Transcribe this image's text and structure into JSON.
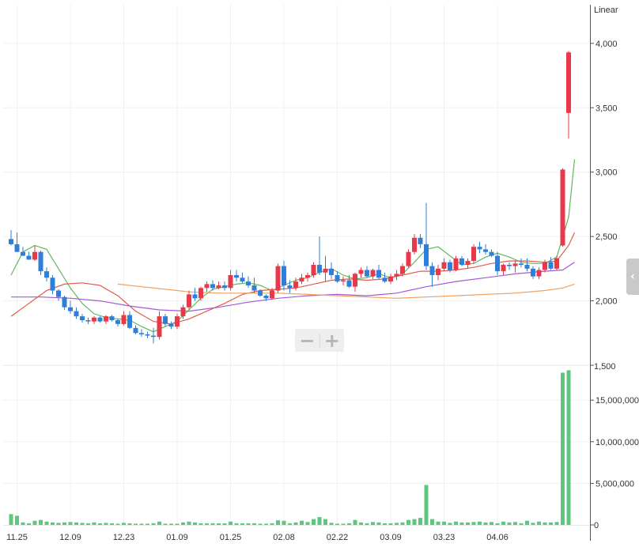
{
  "chart_data": {
    "type": "candlestick",
    "scale_label": "Linear",
    "x_tick_labels": [
      "11.25",
      "12.09",
      "12.23",
      "01.09",
      "01.25",
      "02.08",
      "02.22",
      "03.09",
      "03.23",
      "04.06"
    ],
    "x_tick_indices": [
      1,
      10,
      19,
      28,
      37,
      46,
      55,
      64,
      73,
      82
    ],
    "price_axis": {
      "ylim": [
        1500,
        4300
      ],
      "ticks": [
        2000,
        2500,
        3000,
        3500,
        4000
      ]
    },
    "price_axis_bottom_label": "1,500",
    "volume_axis": {
      "ylim": [
        0,
        19200000
      ],
      "ticks": [
        5000000,
        10000000,
        15000000
      ]
    },
    "volume_axis_bottom_label": "0",
    "candles_ohlc": [
      [
        2480,
        2550,
        2430,
        2440
      ],
      [
        2440,
        2530,
        2380,
        2380
      ],
      [
        2380,
        2420,
        2350,
        2350
      ],
      [
        2350,
        2380,
        2320,
        2320
      ],
      [
        2320,
        2430,
        2310,
        2380
      ],
      [
        2380,
        2390,
        2200,
        2230
      ],
      [
        2230,
        2260,
        2150,
        2180
      ],
      [
        2180,
        2200,
        2050,
        2080
      ],
      [
        2080,
        2090,
        2000,
        2030
      ],
      [
        2030,
        2040,
        1930,
        1950
      ],
      [
        1950,
        2000,
        1900,
        1920
      ],
      [
        1920,
        1950,
        1860,
        1880
      ],
      [
        1880,
        1900,
        1830,
        1850
      ],
      [
        1850,
        1870,
        1820,
        1840
      ],
      [
        1840,
        1880,
        1820,
        1870
      ],
      [
        1870,
        1880,
        1830,
        1840
      ],
      [
        1840,
        1890,
        1820,
        1880
      ],
      [
        1880,
        1890,
        1840,
        1850
      ],
      [
        1850,
        1860,
        1800,
        1820
      ],
      [
        1820,
        1920,
        1810,
        1890
      ],
      [
        1890,
        1920,
        1780,
        1790
      ],
      [
        1790,
        1810,
        1740,
        1750
      ],
      [
        1750,
        1780,
        1720,
        1740
      ],
      [
        1740,
        1760,
        1710,
        1730
      ],
      [
        1730,
        1790,
        1670,
        1720
      ],
      [
        1720,
        1920,
        1700,
        1880
      ],
      [
        1880,
        1900,
        1800,
        1820
      ],
      [
        1820,
        1840,
        1780,
        1800
      ],
      [
        1800,
        1900,
        1780,
        1880
      ],
      [
        1880,
        1970,
        1860,
        1950
      ],
      [
        1950,
        2080,
        1930,
        2050
      ],
      [
        2050,
        2100,
        2000,
        2020
      ],
      [
        2020,
        2110,
        2000,
        2100
      ],
      [
        2100,
        2150,
        2070,
        2130
      ],
      [
        2130,
        2160,
        2080,
        2100
      ],
      [
        2100,
        2150,
        2090,
        2120
      ],
      [
        2120,
        2150,
        2080,
        2100
      ],
      [
        2100,
        2240,
        2080,
        2200
      ],
      [
        2200,
        2240,
        2150,
        2180
      ],
      [
        2180,
        2220,
        2140,
        2150
      ],
      [
        2150,
        2190,
        2100,
        2120
      ],
      [
        2120,
        2180,
        2060,
        2080
      ],
      [
        2080,
        2090,
        2030,
        2040
      ],
      [
        2040,
        2050,
        2000,
        2020
      ],
      [
        2020,
        2100,
        2010,
        2080
      ],
      [
        2080,
        2290,
        2060,
        2270
      ],
      [
        2270,
        2310,
        2080,
        2120
      ],
      [
        2120,
        2160,
        2060,
        2100
      ],
      [
        2100,
        2180,
        2080,
        2150
      ],
      [
        2150,
        2210,
        2130,
        2180
      ],
      [
        2180,
        2220,
        2150,
        2200
      ],
      [
        2200,
        2300,
        2180,
        2280
      ],
      [
        2280,
        2500,
        2200,
        2220
      ],
      [
        2220,
        2350,
        2150,
        2250
      ],
      [
        2250,
        2300,
        2170,
        2200
      ],
      [
        2200,
        2230,
        2140,
        2150
      ],
      [
        2150,
        2190,
        2120,
        2160
      ],
      [
        2160,
        2200,
        2100,
        2110
      ],
      [
        2110,
        2220,
        2070,
        2210
      ],
      [
        2210,
        2260,
        2180,
        2240
      ],
      [
        2240,
        2270,
        2180,
        2190
      ],
      [
        2190,
        2250,
        2170,
        2240
      ],
      [
        2240,
        2280,
        2170,
        2180
      ],
      [
        2180,
        2220,
        2140,
        2150
      ],
      [
        2150,
        2210,
        2130,
        2190
      ],
      [
        2190,
        2240,
        2160,
        2210
      ],
      [
        2210,
        2290,
        2190,
        2270
      ],
      [
        2270,
        2400,
        2260,
        2380
      ],
      [
        2380,
        2520,
        2360,
        2490
      ],
      [
        2490,
        2520,
        2410,
        2440
      ],
      [
        2440,
        2760,
        2240,
        2270
      ],
      [
        2270,
        2300,
        2110,
        2200
      ],
      [
        2200,
        2280,
        2160,
        2250
      ],
      [
        2250,
        2330,
        2230,
        2300
      ],
      [
        2300,
        2320,
        2220,
        2240
      ],
      [
        2240,
        2350,
        2230,
        2330
      ],
      [
        2330,
        2350,
        2270,
        2280
      ],
      [
        2280,
        2330,
        2250,
        2310
      ],
      [
        2310,
        2440,
        2290,
        2420
      ],
      [
        2420,
        2460,
        2370,
        2400
      ],
      [
        2400,
        2440,
        2360,
        2380
      ],
      [
        2380,
        2400,
        2340,
        2350
      ],
      [
        2350,
        2380,
        2200,
        2230
      ],
      [
        2230,
        2290,
        2200,
        2280
      ],
      [
        2280,
        2300,
        2240,
        2270
      ],
      [
        2270,
        2310,
        2220,
        2290
      ],
      [
        2290,
        2330,
        2260,
        2280
      ],
      [
        2280,
        2330,
        2230,
        2250
      ],
      [
        2250,
        2270,
        2170,
        2190
      ],
      [
        2190,
        2260,
        2170,
        2240
      ],
      [
        2240,
        2320,
        2220,
        2300
      ],
      [
        2300,
        2340,
        2240,
        2250
      ],
      [
        2250,
        2350,
        2240,
        2330
      ],
      [
        2430,
        3030,
        2420,
        3020
      ],
      [
        3460,
        3940,
        3260,
        3930
      ]
    ],
    "volume": [
      1300000,
      1100000,
      300000,
      200000,
      500000,
      600000,
      400000,
      300000,
      250000,
      300000,
      350000,
      300000,
      250000,
      200000,
      300000,
      200000,
      250000,
      200000,
      150000,
      250000,
      200000,
      150000,
      150000,
      150000,
      200000,
      400000,
      150000,
      150000,
      150000,
      300000,
      400000,
      300000,
      200000,
      200000,
      200000,
      200000,
      200000,
      400000,
      200000,
      200000,
      200000,
      200000,
      150000,
      150000,
      200000,
      550000,
      500000,
      200000,
      300000,
      500000,
      350000,
      700000,
      950000,
      700000,
      250000,
      150000,
      150000,
      200000,
      600000,
      300000,
      200000,
      350000,
      300000,
      200000,
      200000,
      250000,
      300000,
      600000,
      700000,
      850000,
      4800000,
      700000,
      400000,
      400000,
      250000,
      400000,
      300000,
      300000,
      350000,
      400000,
      300000,
      350000,
      200000,
      400000,
      300000,
      350000,
      200000,
      500000,
      250000,
      400000,
      300000,
      300000,
      350000,
      18300000,
      18600000
    ],
    "series": [
      {
        "color": "#5fb95f",
        "values": [
          [
            0,
            2200
          ],
          [
            2,
            2380
          ],
          [
            4,
            2430
          ],
          [
            6,
            2400
          ],
          [
            8,
            2250
          ],
          [
            10,
            2100
          ],
          [
            12,
            1980
          ],
          [
            14,
            1900
          ],
          [
            16,
            1870
          ],
          [
            18,
            1860
          ],
          [
            20,
            1850
          ],
          [
            22,
            1800
          ],
          [
            24,
            1760
          ],
          [
            26,
            1800
          ],
          [
            28,
            1840
          ],
          [
            30,
            1930
          ],
          [
            32,
            2020
          ],
          [
            34,
            2090
          ],
          [
            36,
            2110
          ],
          [
            38,
            2130
          ],
          [
            40,
            2140
          ],
          [
            42,
            2120
          ],
          [
            44,
            2080
          ],
          [
            46,
            2120
          ],
          [
            48,
            2160
          ],
          [
            50,
            2180
          ],
          [
            52,
            2220
          ],
          [
            54,
            2250
          ],
          [
            56,
            2200
          ],
          [
            58,
            2170
          ],
          [
            60,
            2180
          ],
          [
            62,
            2210
          ],
          [
            64,
            2180
          ],
          [
            66,
            2210
          ],
          [
            68,
            2300
          ],
          [
            70,
            2400
          ],
          [
            72,
            2420
          ],
          [
            74,
            2350
          ],
          [
            76,
            2280
          ],
          [
            78,
            2290
          ],
          [
            80,
            2340
          ],
          [
            82,
            2370
          ],
          [
            84,
            2340
          ],
          [
            86,
            2300
          ],
          [
            88,
            2290
          ],
          [
            90,
            2290
          ],
          [
            92,
            2340
          ],
          [
            94,
            2650
          ],
          [
            95,
            3100
          ]
        ]
      },
      {
        "color": "#e05b4b",
        "values": [
          [
            0,
            1880
          ],
          [
            3,
            1980
          ],
          [
            6,
            2080
          ],
          [
            9,
            2130
          ],
          [
            12,
            2140
          ],
          [
            15,
            2120
          ],
          [
            18,
            2040
          ],
          [
            21,
            1920
          ],
          [
            24,
            1840
          ],
          [
            27,
            1820
          ],
          [
            30,
            1860
          ],
          [
            33,
            1920
          ],
          [
            36,
            1980
          ],
          [
            39,
            2050
          ],
          [
            42,
            2080
          ],
          [
            45,
            2090
          ],
          [
            48,
            2100
          ],
          [
            51,
            2130
          ],
          [
            54,
            2160
          ],
          [
            57,
            2170
          ],
          [
            60,
            2160
          ],
          [
            63,
            2170
          ],
          [
            66,
            2200
          ],
          [
            69,
            2230
          ],
          [
            72,
            2230
          ],
          [
            75,
            2240
          ],
          [
            78,
            2260
          ],
          [
            81,
            2290
          ],
          [
            84,
            2310
          ],
          [
            87,
            2310
          ],
          [
            90,
            2300
          ],
          [
            92,
            2310
          ],
          [
            94,
            2430
          ],
          [
            95,
            2530
          ]
        ]
      },
      {
        "color": "#a657d6",
        "values": [
          [
            0,
            2030
          ],
          [
            5,
            2030
          ],
          [
            10,
            2020
          ],
          [
            15,
            2000
          ],
          [
            20,
            1960
          ],
          [
            25,
            1930
          ],
          [
            30,
            1920
          ],
          [
            35,
            1950
          ],
          [
            40,
            1990
          ],
          [
            45,
            2020
          ],
          [
            50,
            2040
          ],
          [
            55,
            2050
          ],
          [
            60,
            2040
          ],
          [
            65,
            2060
          ],
          [
            70,
            2110
          ],
          [
            75,
            2150
          ],
          [
            80,
            2180
          ],
          [
            85,
            2210
          ],
          [
            90,
            2230
          ],
          [
            93,
            2240
          ],
          [
            95,
            2300
          ]
        ]
      },
      {
        "color": "#f0a060",
        "values": [
          [
            18,
            2130
          ],
          [
            22,
            2110
          ],
          [
            26,
            2090
          ],
          [
            30,
            2070
          ],
          [
            35,
            2060
          ],
          [
            40,
            2060
          ],
          [
            45,
            2060
          ],
          [
            50,
            2050
          ],
          [
            55,
            2040
          ],
          [
            60,
            2030
          ],
          [
            65,
            2020
          ],
          [
            70,
            2030
          ],
          [
            75,
            2040
          ],
          [
            80,
            2050
          ],
          [
            85,
            2060
          ],
          [
            90,
            2080
          ],
          [
            93,
            2100
          ],
          [
            95,
            2130
          ]
        ]
      }
    ],
    "up_color": "#e8384a",
    "down_color": "#2f7fd8",
    "volume_color": "#5cc77e"
  }
}
